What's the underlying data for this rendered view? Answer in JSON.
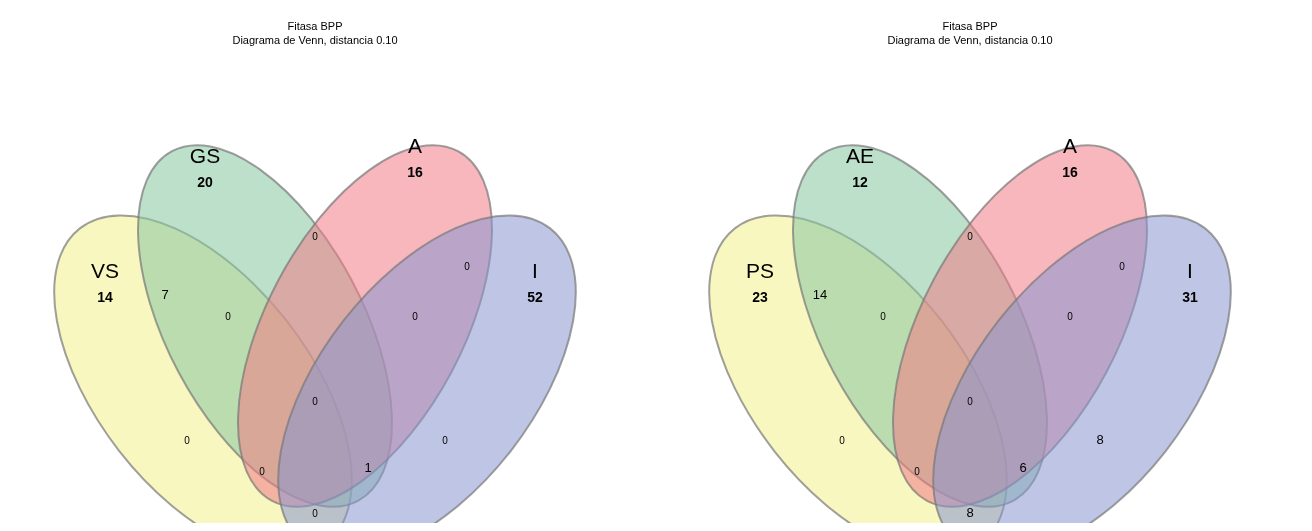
{
  "chart_data": [
    {
      "type": "other",
      "title": "Fitasa BPP",
      "subtitle": "Diagrama de Venn, distancia 0.10",
      "categories": [
        "VS",
        "GS",
        "A",
        "I"
      ],
      "values": [
        14,
        20,
        16,
        52
      ],
      "data_labels": true,
      "annotations": [
        "7",
        "0",
        "0",
        "0",
        "0",
        "0",
        "0",
        "0",
        "0",
        "1",
        "0"
      ]
    },
    {
      "type": "other",
      "title": "Fitasa BPP",
      "subtitle": "Diagrama de Venn, distancia 0.10",
      "categories": [
        "PS",
        "AE",
        "A",
        "I"
      ],
      "values": [
        23,
        12,
        16,
        31
      ],
      "data_labels": true,
      "annotations": [
        "14",
        "0",
        "0",
        "0",
        "0",
        "0",
        "0",
        "8",
        "0",
        "6",
        "8"
      ]
    }
  ]
}
